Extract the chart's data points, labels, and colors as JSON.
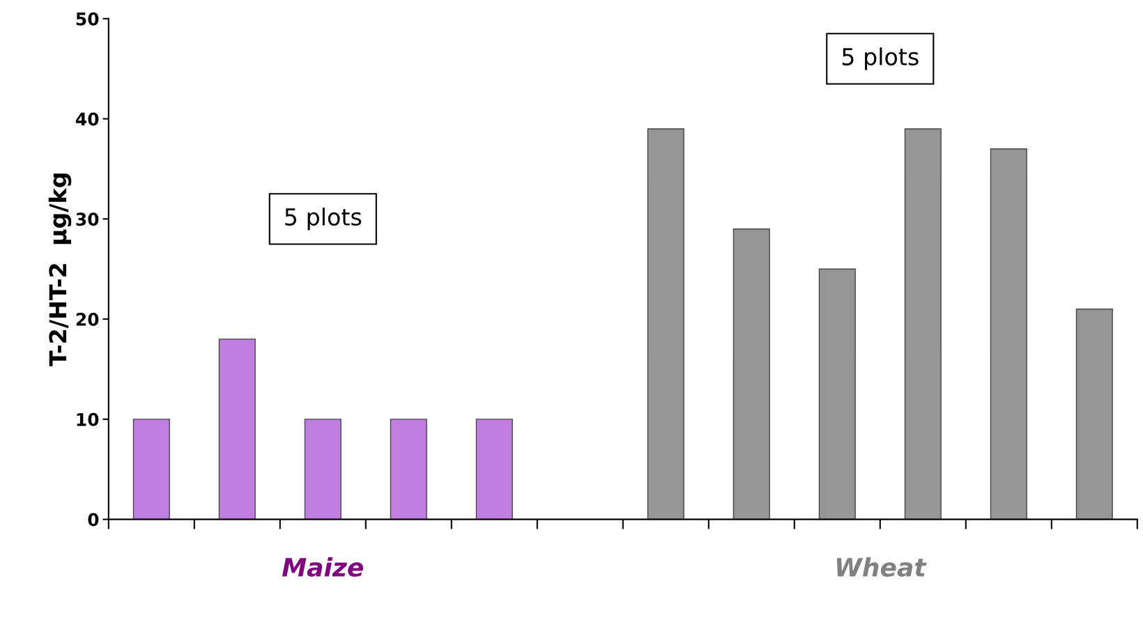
{
  "chart_data": {
    "type": "bar",
    "ylabel": "T-2/HT-2  µg/kg",
    "categories": [
      null,
      null,
      null,
      null,
      null,
      null,
      null,
      null,
      null,
      null,
      null,
      null
    ],
    "series": [
      {
        "name": "Maize",
        "color": "#c07ee0",
        "values": [
          10,
          18,
          10,
          10,
          10,
          null,
          null,
          null,
          null,
          null,
          null,
          null
        ]
      },
      {
        "name": "Wheat",
        "color": "#969696",
        "values": [
          null,
          null,
          null,
          null,
          null,
          null,
          39,
          29,
          25,
          39,
          37,
          21
        ]
      }
    ],
    "ylim": [
      0,
      50
    ],
    "yticks": [
      0,
      10,
      20,
      30,
      40,
      50
    ],
    "grid": false,
    "legend": false,
    "annotations": [
      "5 plots",
      "5 plots"
    ]
  }
}
